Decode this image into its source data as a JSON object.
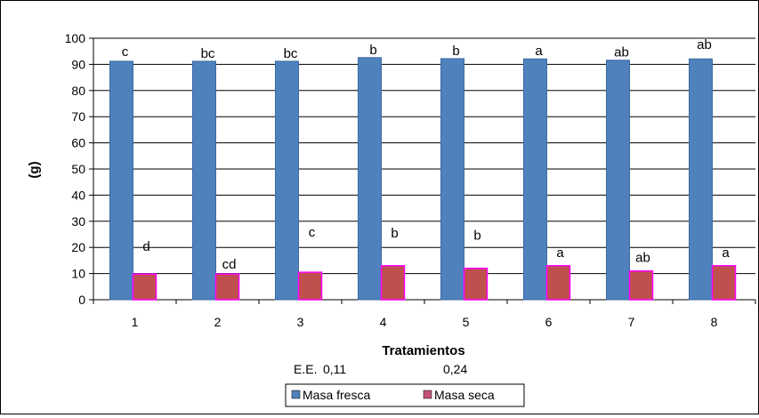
{
  "chart_data": {
    "type": "bar",
    "title": "",
    "xlabel": "Tratamientos",
    "ylabel": "(g)",
    "ylim": [
      0,
      100
    ],
    "yticks": [
      0,
      10,
      20,
      30,
      40,
      50,
      60,
      70,
      80,
      90,
      100
    ],
    "grid": "horizontal",
    "legend_position": "bottom",
    "categories": [
      "1",
      "2",
      "3",
      "4",
      "5",
      "6",
      "7",
      "8"
    ],
    "series": [
      {
        "name": "Masa fresca",
        "color": "#4F81BD",
        "values": [
          91.2,
          91.2,
          91.2,
          92.6,
          92.2,
          92.1,
          91.6,
          92.1
        ],
        "labels": [
          "c",
          "bc",
          "bc",
          "b",
          "b",
          "a",
          "ab",
          "ab"
        ]
      },
      {
        "name": "Masa seca",
        "color": "#C0504D",
        "values": [
          9.8,
          9.8,
          10.5,
          13.0,
          12.0,
          13.0,
          11.0,
          13.0
        ],
        "labels": [
          "d",
          "cd",
          "c",
          "b",
          "b",
          "a",
          "ab",
          "a"
        ]
      }
    ],
    "annotations": {
      "se_prefix": "E.E.",
      "se_values": [
        "0,11",
        "0,24"
      ]
    }
  }
}
